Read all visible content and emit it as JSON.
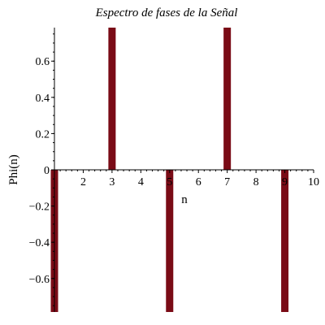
{
  "chart_data": {
    "type": "bar",
    "title": "Espectro de fases de la Señal",
    "xlabel": "n",
    "ylabel": "Phi(n)",
    "x": [
      1,
      3,
      5,
      7,
      9
    ],
    "values": [
      -0.785,
      0.785,
      -0.785,
      0.785,
      -0.785
    ],
    "xlim": [
      1,
      10
    ],
    "ylim": [
      -0.785,
      0.785
    ],
    "x_ticks": [
      {
        "value": 2,
        "label": "2"
      },
      {
        "value": 3,
        "label": "3"
      },
      {
        "value": 4,
        "label": "4"
      },
      {
        "value": 5,
        "label": "5"
      },
      {
        "value": 6,
        "label": "6"
      },
      {
        "value": 7,
        "label": "7"
      },
      {
        "value": 8,
        "label": "8"
      },
      {
        "value": 9,
        "label": "9"
      },
      {
        "value": 10,
        "label": "10"
      }
    ],
    "y_ticks": [
      {
        "value": 0.6,
        "label": "0.6"
      },
      {
        "value": 0.4,
        "label": "0.4"
      },
      {
        "value": 0.2,
        "label": "0.2"
      },
      {
        "value": 0,
        "label": "0"
      },
      {
        "value": -0.2,
        "label": "−0.2"
      },
      {
        "value": -0.4,
        "label": "−0.4"
      },
      {
        "value": -0.6,
        "label": "−0.6"
      }
    ],
    "bar_color": "#7a0b16",
    "grid": false
  }
}
